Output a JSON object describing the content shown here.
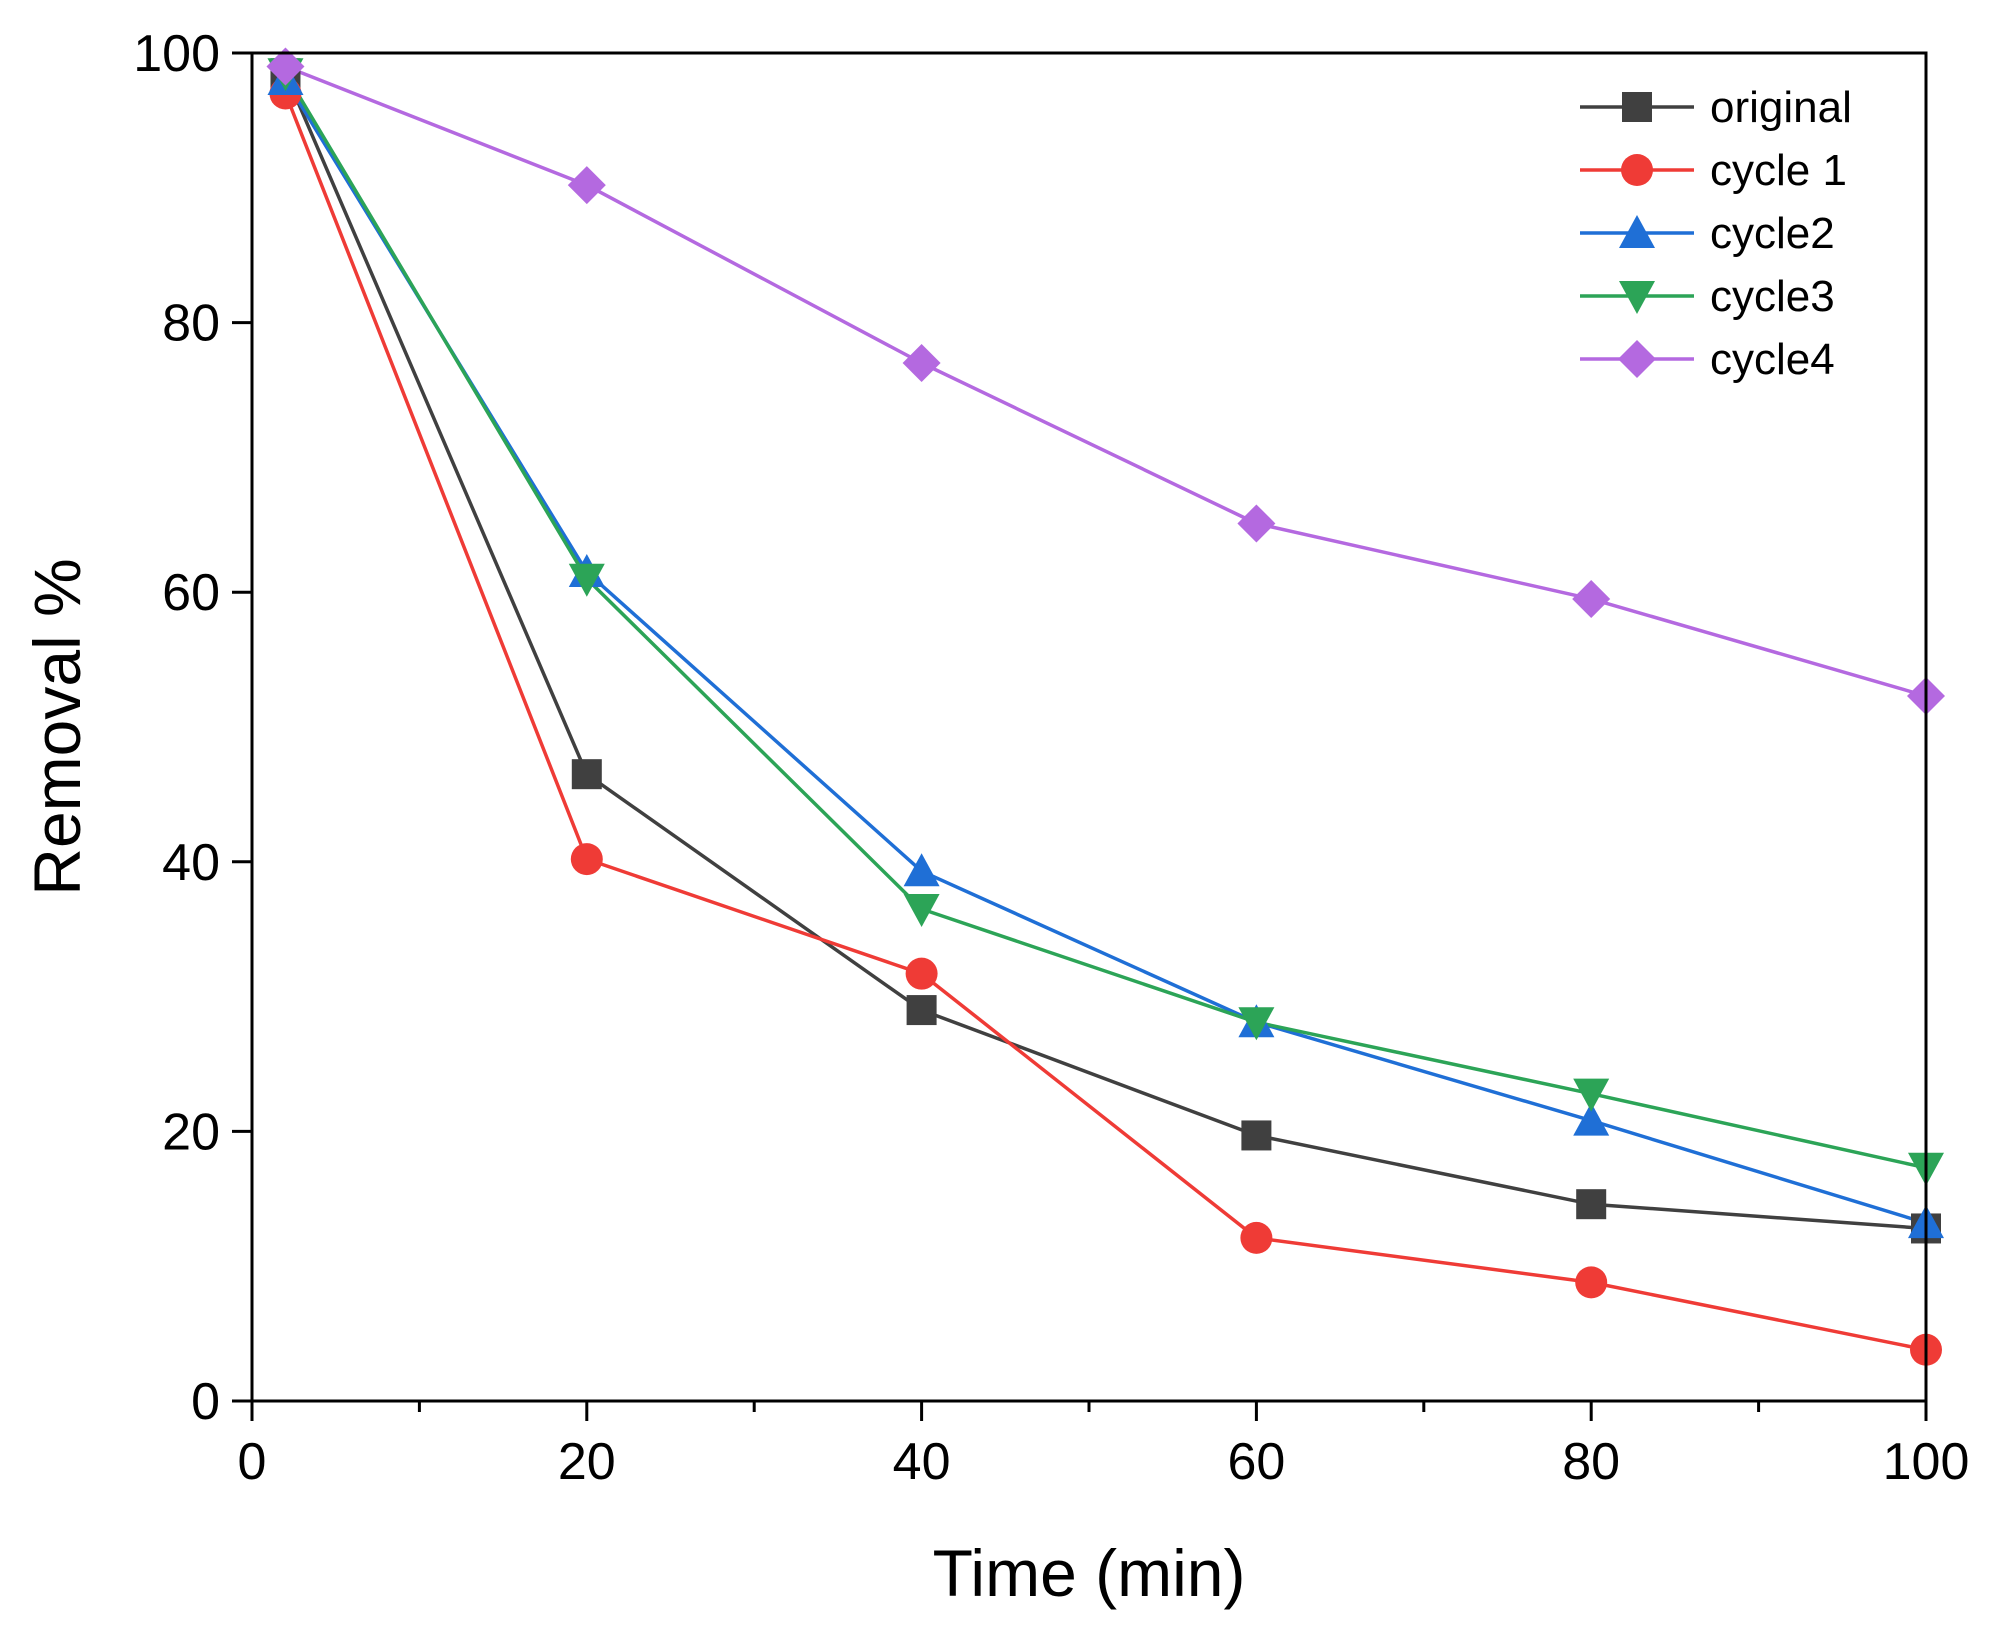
{
  "chart_data": {
    "type": "line",
    "title": "",
    "xlabel": "Time (min)",
    "ylabel": "Removal %",
    "xlim": [
      0,
      100
    ],
    "ylim": [
      0,
      100
    ],
    "xticks": [
      0,
      20,
      40,
      60,
      80,
      100
    ],
    "yticks": [
      0,
      20,
      40,
      60,
      80,
      100
    ],
    "x_minor_ticks": [
      10,
      30,
      50,
      70,
      90
    ],
    "grid": false,
    "legend_position": "top-right",
    "series": [
      {
        "name": "original",
        "color": "#404040",
        "marker": "square",
        "x": [
          2,
          20,
          40,
          60,
          80,
          100
        ],
        "y": [
          98.5,
          46.5,
          29,
          19.7,
          14.6,
          12.8
        ]
      },
      {
        "name": "cycle 1",
        "color": "#ef3b36",
        "marker": "circle",
        "x": [
          2,
          20,
          40,
          60,
          80,
          100
        ],
        "y": [
          97,
          40.2,
          31.7,
          12.1,
          8.8,
          3.8
        ]
      },
      {
        "name": "cycle2",
        "color": "#1f6fd6",
        "marker": "triangle-up",
        "x": [
          2,
          20,
          40,
          60,
          80,
          100
        ],
        "y": [
          98,
          61.5,
          39.3,
          28.1,
          20.8,
          13.2
        ]
      },
      {
        "name": "cycle3",
        "color": "#2ca457",
        "marker": "triangle-down",
        "x": [
          2,
          20,
          40,
          60,
          80,
          100
        ],
        "y": [
          98.5,
          61,
          36.5,
          28.1,
          22.8,
          17.3
        ]
      },
      {
        "name": "cycle4",
        "color": "#b469e0",
        "marker": "diamond",
        "x": [
          2,
          20,
          40,
          60,
          80,
          100
        ],
        "y": [
          99,
          90.2,
          77,
          65.1,
          59.5,
          52.3
        ]
      }
    ]
  }
}
